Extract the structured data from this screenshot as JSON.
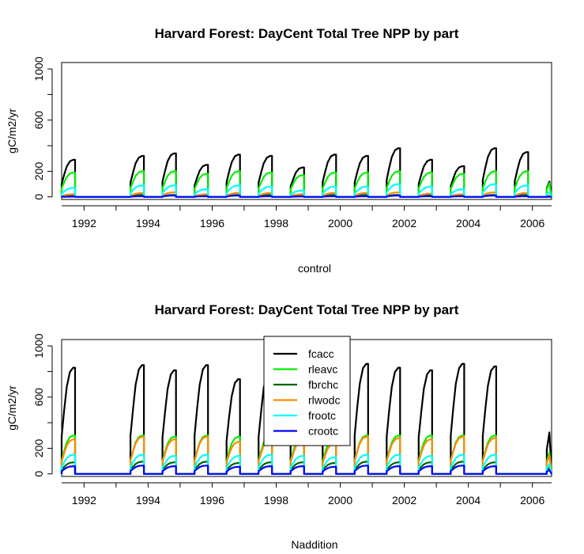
{
  "chart_data": [
    {
      "type": "line",
      "title": "Harvard Forest: DayCent Total Tree NPP by part",
      "xlabel": "control",
      "ylabel": "gC/m2/yr",
      "xlim": [
        1991.3,
        2006.6
      ],
      "ylim": [
        -20,
        1050
      ],
      "yticks": [
        0,
        200,
        600,
        1000
      ],
      "xticks": [
        1992,
        1994,
        1996,
        1998,
        2000,
        2002,
        2004,
        2006
      ],
      "legend": null,
      "gaps": [
        [
          1992.0,
          1993.4
        ],
        [
          1999.6,
          1999.8
        ]
      ],
      "series": [
        {
          "name": "fcacc",
          "color": "#000000",
          "peaks": [
            290,
            320,
            340,
            250,
            330,
            320,
            230,
            330,
            320,
            380,
            290,
            240,
            380,
            350,
            200
          ]
        },
        {
          "name": "rleavc",
          "color": "#00ee00",
          "peaks": [
            190,
            200,
            200,
            180,
            200,
            190,
            170,
            190,
            190,
            200,
            190,
            180,
            200,
            200,
            180
          ]
        },
        {
          "name": "fbrchc",
          "color": "#006400",
          "peaks": [
            10,
            15,
            15,
            10,
            15,
            15,
            10,
            15,
            15,
            15,
            15,
            10,
            15,
            15,
            10
          ]
        },
        {
          "name": "rlwodc",
          "color": "#ff8c00",
          "peaks": [
            20,
            30,
            35,
            20,
            30,
            30,
            20,
            30,
            30,
            35,
            25,
            20,
            35,
            30,
            20
          ]
        },
        {
          "name": "frootc",
          "color": "#00ffff",
          "peaks": [
            70,
            90,
            90,
            60,
            90,
            80,
            50,
            80,
            80,
            100,
            80,
            60,
            100,
            90,
            60
          ]
        },
        {
          "name": "crootc",
          "color": "#0000ff",
          "peaks": [
            2,
            5,
            10,
            5,
            10,
            5,
            3,
            5,
            5,
            10,
            5,
            5,
            10,
            5,
            3
          ]
        }
      ]
    },
    {
      "type": "line",
      "title": "Harvard Forest: DayCent Total Tree NPP by part",
      "xlabel": "Naddition",
      "ylabel": "gC/m2/yr",
      "xlim": [
        1991.3,
        2006.6
      ],
      "ylim": [
        -20,
        1050
      ],
      "yticks": [
        0,
        200,
        600,
        1000
      ],
      "xticks": [
        1992,
        1994,
        1996,
        1998,
        2000,
        2002,
        2004,
        2006
      ],
      "legend": "top-center",
      "gaps": [
        [
          1992.0,
          1993.4
        ],
        [
          1999.6,
          1999.8
        ]
      ],
      "series": [
        {
          "name": "fcacc",
          "color": "#000000",
          "peaks": [
            830,
            850,
            810,
            850,
            740,
            820,
            800,
            720,
            860,
            830,
            810,
            860,
            840,
            540
          ]
        },
        {
          "name": "rleavc",
          "color": "#00ee00",
          "peaks": [
            300,
            300,
            290,
            300,
            290,
            300,
            290,
            280,
            300,
            300,
            300,
            300,
            300,
            280
          ]
        },
        {
          "name": "fbrchc",
          "color": "#006400",
          "peaks": [
            90,
            95,
            90,
            95,
            85,
            90,
            90,
            85,
            95,
            90,
            90,
            95,
            90,
            80
          ]
        },
        {
          "name": "rlwodc",
          "color": "#ff8c00",
          "peaks": [
            270,
            290,
            270,
            290,
            250,
            270,
            260,
            240,
            290,
            280,
            270,
            290,
            280,
            240
          ]
        },
        {
          "name": "frootc",
          "color": "#00ffff",
          "peaks": [
            150,
            150,
            140,
            150,
            140,
            150,
            140,
            130,
            150,
            150,
            140,
            150,
            150,
            130
          ]
        },
        {
          "name": "crootc",
          "color": "#0000ff",
          "peaks": [
            60,
            65,
            60,
            65,
            55,
            60,
            60,
            55,
            65,
            60,
            60,
            65,
            60,
            50
          ]
        }
      ]
    }
  ]
}
